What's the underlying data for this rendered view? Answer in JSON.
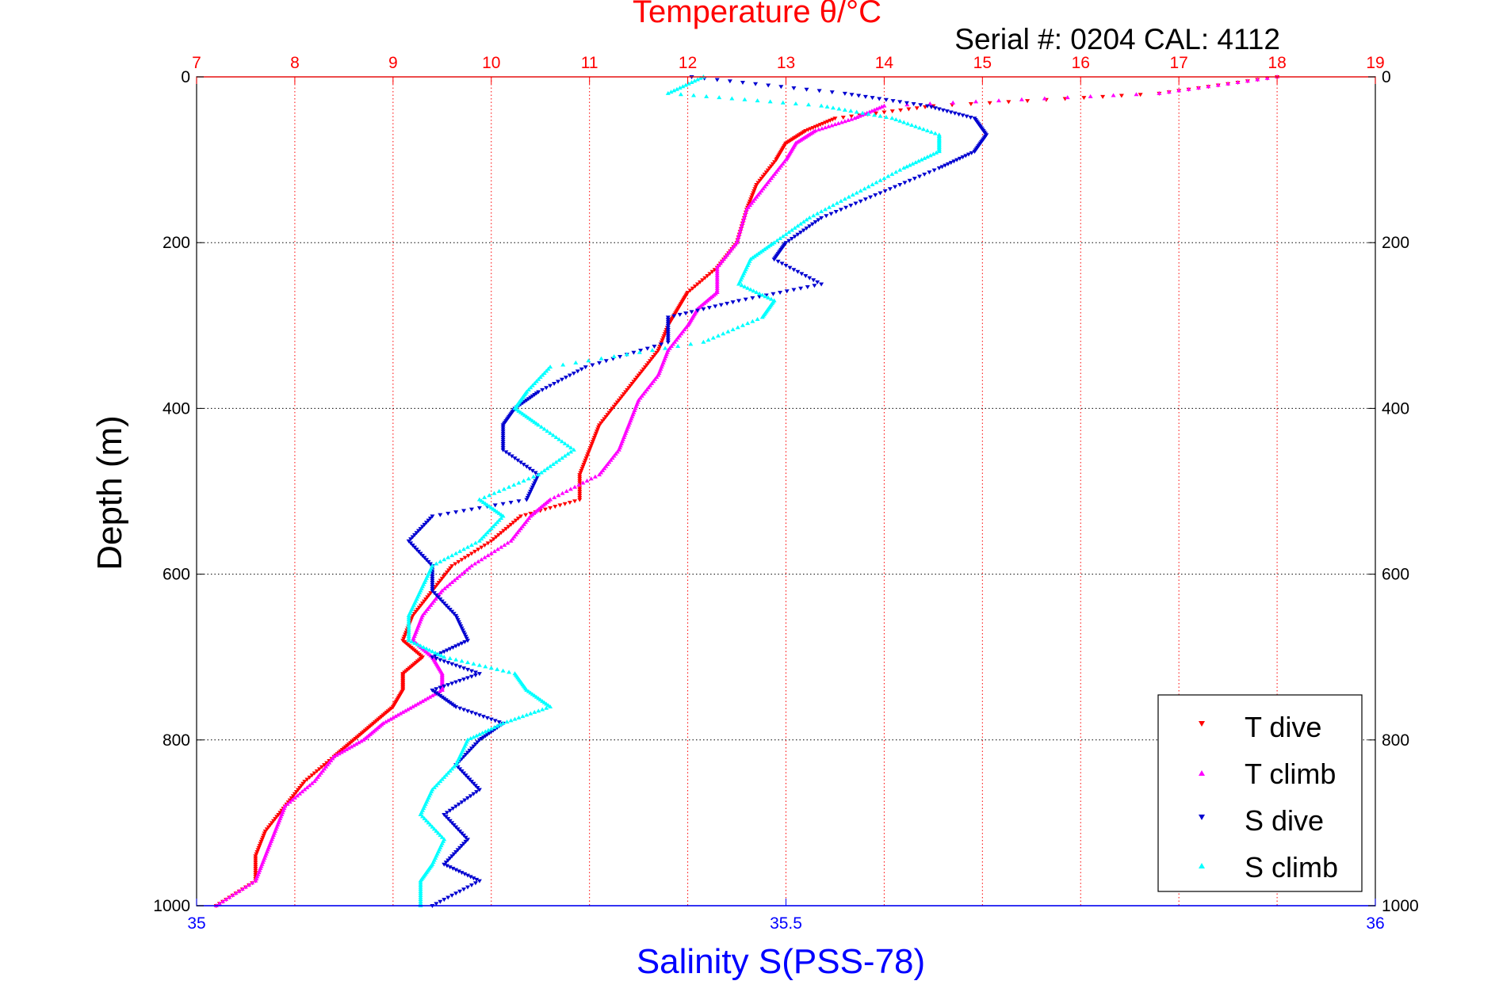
{
  "chart_data": {
    "type": "scatter",
    "title": "Temperature θ/°C",
    "serial_text": "Serial #: 0204  CAL: 4112",
    "xlabel_bottom": "Salinity S(PSS-78)",
    "xlabel_top": "Temperature θ/°C",
    "ylabel": "Depth (m)",
    "ylim": [
      1000,
      0
    ],
    "x_top_lim": [
      7,
      19
    ],
    "x_bottom_lim": [
      35,
      36
    ],
    "y_ticks": [
      "0",
      "200",
      "400",
      "600",
      "800",
      "1000"
    ],
    "x_top_ticks": [
      "7",
      "8",
      "9",
      "10",
      "11",
      "12",
      "13",
      "14",
      "15",
      "16",
      "17",
      "18",
      "19"
    ],
    "x_bottom_ticks": [
      "35",
      "35.5",
      "36"
    ],
    "grid": true,
    "legend_position": "bottom-right",
    "colors": {
      "temp_axis": "#ff0000",
      "sal_axis": "#0000ff",
      "t_dive": "#ff0000",
      "t_climb": "#ff00ff",
      "s_dive": "#0000d0",
      "s_climb": "#00ffff"
    },
    "series": [
      {
        "name": "T dive",
        "axis": "temperature",
        "marker": "triangle-down",
        "depth": [
          0,
          20,
          35,
          50,
          65,
          80,
          100,
          130,
          160,
          200,
          230,
          260,
          280,
          300,
          330,
          360,
          390,
          420,
          450,
          480,
          510,
          530,
          560,
          590,
          620,
          650,
          680,
          700,
          720,
          740,
          760,
          780,
          800,
          820,
          850,
          880,
          910,
          940,
          970,
          1000
        ],
        "temperature": [
          18.0,
          16.8,
          14.5,
          13.5,
          13.2,
          13.0,
          12.9,
          12.7,
          12.6,
          12.5,
          12.3,
          12.0,
          11.9,
          11.8,
          11.7,
          11.5,
          11.3,
          11.1,
          11.0,
          10.9,
          10.9,
          10.3,
          10.0,
          9.6,
          9.4,
          9.2,
          9.1,
          9.3,
          9.1,
          9.1,
          9.0,
          8.8,
          8.6,
          8.4,
          8.1,
          7.9,
          7.7,
          7.6,
          7.6,
          7.2
        ]
      },
      {
        "name": "T climb",
        "axis": "temperature",
        "marker": "triangle-up",
        "depth": [
          0,
          20,
          35,
          50,
          65,
          80,
          100,
          130,
          160,
          200,
          230,
          260,
          280,
          300,
          330,
          360,
          390,
          420,
          450,
          480,
          510,
          530,
          560,
          590,
          620,
          650,
          680,
          700,
          720,
          740,
          760,
          780,
          800,
          820,
          850,
          880,
          910,
          940,
          970,
          1000
        ],
        "temperature": [
          18.0,
          16.8,
          14.0,
          13.7,
          13.3,
          13.1,
          13.0,
          12.8,
          12.6,
          12.5,
          12.3,
          12.3,
          12.1,
          12.0,
          11.8,
          11.7,
          11.5,
          11.4,
          11.3,
          11.1,
          10.6,
          10.4,
          10.2,
          9.8,
          9.5,
          9.3,
          9.2,
          9.4,
          9.5,
          9.5,
          9.2,
          8.9,
          8.7,
          8.4,
          8.2,
          7.9,
          7.8,
          7.7,
          7.6,
          7.2
        ]
      },
      {
        "name": "S dive",
        "axis": "salinity",
        "marker": "triangle-down",
        "depth": [
          0,
          20,
          35,
          50,
          70,
          90,
          110,
          140,
          170,
          200,
          220,
          250,
          270,
          290,
          320,
          350,
          380,
          400,
          420,
          450,
          480,
          510,
          530,
          560,
          590,
          620,
          650,
          680,
          700,
          720,
          740,
          760,
          780,
          800,
          830,
          860,
          890,
          920,
          950,
          970,
          1000
        ],
        "salinity": [
          35.42,
          35.55,
          35.62,
          35.66,
          35.67,
          35.66,
          35.63,
          35.58,
          35.53,
          35.5,
          35.49,
          35.53,
          35.46,
          35.4,
          35.4,
          35.33,
          35.29,
          35.27,
          35.26,
          35.26,
          35.29,
          35.28,
          35.2,
          35.18,
          35.2,
          35.2,
          35.22,
          35.23,
          35.2,
          35.24,
          35.2,
          35.22,
          35.26,
          35.24,
          35.22,
          35.24,
          35.21,
          35.23,
          35.21,
          35.24,
          35.2
        ]
      },
      {
        "name": "S climb",
        "axis": "salinity",
        "marker": "triangle-up",
        "depth": [
          0,
          20,
          35,
          50,
          70,
          90,
          110,
          140,
          170,
          200,
          220,
          250,
          270,
          290,
          320,
          350,
          380,
          400,
          420,
          450,
          480,
          510,
          530,
          560,
          590,
          620,
          650,
          680,
          700,
          720,
          740,
          760,
          780,
          800,
          830,
          860,
          890,
          920,
          950,
          970,
          1000
        ],
        "salinity": [
          35.43,
          35.4,
          35.53,
          35.59,
          35.63,
          35.63,
          35.6,
          35.56,
          35.52,
          35.49,
          35.47,
          35.46,
          35.49,
          35.48,
          35.43,
          35.3,
          35.28,
          35.27,
          35.29,
          35.32,
          35.29,
          35.24,
          35.26,
          35.24,
          35.2,
          35.19,
          35.18,
          35.18,
          35.21,
          35.27,
          35.28,
          35.3,
          35.26,
          35.23,
          35.22,
          35.2,
          35.19,
          35.21,
          35.2,
          35.19,
          35.19
        ]
      }
    ]
  }
}
